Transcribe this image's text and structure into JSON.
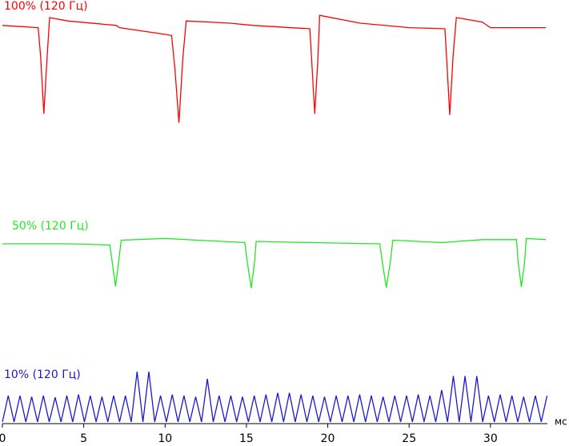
{
  "chart_data": [
    {
      "type": "line",
      "title": "100% (120 Гц)",
      "color": "#ff0000",
      "xlim": [
        0,
        33.5
      ],
      "ylim": [
        0,
        100
      ],
      "x": [
        0,
        2.2,
        2.35,
        2.55,
        2.75,
        2.9,
        4,
        7,
        7.2,
        10,
        10.4,
        10.6,
        10.85,
        11.1,
        11.3,
        14,
        15.4,
        18.9,
        19.0,
        19.2,
        19.4,
        19.5,
        22,
        25,
        27.2,
        27.3,
        27.5,
        27.7,
        27.9,
        29.5,
        30,
        33.4
      ],
      "values": [
        88,
        86,
        60,
        9,
        60,
        95,
        92,
        88,
        86,
        80,
        79,
        50,
        1,
        60,
        92,
        90,
        88,
        85,
        60,
        9,
        60,
        97,
        90,
        86,
        85,
        60,
        8,
        60,
        95,
        91,
        86,
        86
      ]
    },
    {
      "type": "line",
      "title": "50% (120 Гц)",
      "color": "#22e822",
      "xlim": [
        0,
        33.5
      ],
      "ylim": [
        0,
        100
      ],
      "x": [
        0,
        4,
        6.6,
        6.75,
        6.95,
        7.15,
        7.3,
        10,
        12,
        14.9,
        15.05,
        15.3,
        15.5,
        15.6,
        19,
        23.2,
        23.35,
        23.6,
        23.85,
        24,
        27,
        29.5,
        31.6,
        31.7,
        31.9,
        32.1,
        32.2,
        33.4
      ],
      "values": [
        80,
        80,
        78,
        50,
        9,
        50,
        86,
        89,
        86,
        82,
        50,
        6,
        50,
        84,
        82,
        80,
        50,
        7,
        50,
        86,
        82,
        87,
        87,
        50,
        8,
        50,
        89,
        87
      ]
    },
    {
      "type": "line",
      "title": "10% (120 Гц)",
      "color": "#1a1acc",
      "xlim": [
        0,
        33.5
      ],
      "ylim": [
        0,
        100
      ],
      "xticks": [
        0,
        5,
        10,
        15,
        20,
        25,
        30
      ],
      "x_label": "мс",
      "x": [
        0,
        0.36,
        0.72,
        1.08,
        1.44,
        1.8,
        2.16,
        2.52,
        2.88,
        3.24,
        3.6,
        3.96,
        4.32,
        4.68,
        5.04,
        5.4,
        5.76,
        6.12,
        6.48,
        6.84,
        7.2,
        7.56,
        7.92,
        8.28,
        8.64,
        9,
        9.36,
        9.72,
        10.08,
        10.44,
        10.8,
        11.16,
        11.52,
        11.88,
        12.24,
        12.6,
        12.96,
        13.32,
        13.68,
        14.04,
        14.4,
        14.76,
        15.12,
        15.48,
        15.84,
        16.2,
        16.56,
        16.92,
        17.28,
        17.64,
        18,
        18.36,
        18.72,
        19.08,
        19.44,
        19.8,
        20.16,
        20.52,
        20.88,
        21.24,
        21.6,
        21.96,
        22.32,
        22.68,
        23.04,
        23.4,
        23.76,
        24.12,
        24.48,
        24.84,
        25.2,
        25.56,
        25.92,
        26.28,
        26.64,
        27,
        27.36,
        27.72,
        28.08,
        28.44,
        28.8,
        29.16,
        29.52,
        29.88,
        30.24,
        30.6,
        30.96,
        31.32,
        31.68,
        32.04,
        32.4,
        32.76,
        33.12,
        33.48
      ],
      "values": [
        3,
        50,
        3,
        50,
        3,
        48,
        3,
        50,
        3,
        47,
        3,
        50,
        3,
        52,
        3,
        50,
        3,
        48,
        3,
        50,
        3,
        50,
        3,
        93,
        3,
        93,
        3,
        50,
        3,
        52,
        3,
        50,
        3,
        48,
        3,
        80,
        3,
        50,
        3,
        50,
        3,
        48,
        3,
        50,
        3,
        52,
        3,
        55,
        3,
        55,
        3,
        52,
        3,
        50,
        3,
        48,
        3,
        50,
        3,
        50,
        3,
        52,
        3,
        50,
        3,
        48,
        3,
        50,
        3,
        50,
        3,
        52,
        3,
        50,
        3,
        60,
        3,
        85,
        3,
        85,
        3,
        85,
        3,
        50,
        3,
        52,
        3,
        50,
        3,
        48,
        3,
        50,
        3,
        50
      ]
    }
  ]
}
